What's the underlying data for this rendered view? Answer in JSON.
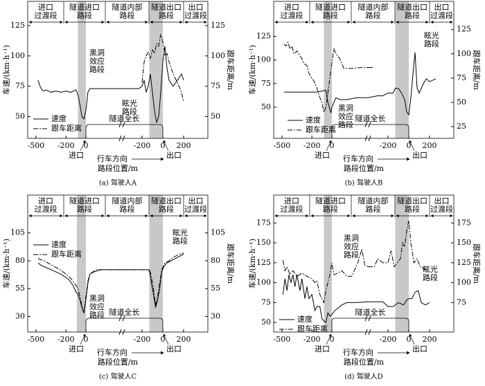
{
  "chart_data": [
    {
      "type": "line",
      "title": "(a) 驾驶人A",
      "ylabel": "车速/(km·h⁻¹)",
      "y2label": "跟车距离/m",
      "xlabel": "路段位置/m",
      "zones": [
        [
          "进口",
          "过渡段"
        ],
        [
          "隧道进口",
          "路段"
        ],
        [
          "隧道内部",
          "路段"
        ],
        [
          "隧道出口",
          "路段"
        ],
        [
          "出口",
          "过渡段"
        ]
      ],
      "entrance_label": "进口",
      "exit_label": "出口",
      "direction_label": "行车方向",
      "tunnel_label": "隧道全长",
      "black_hole_label": [
        "黑洞",
        "效应",
        "路段"
      ],
      "glare_label": [
        "眩光",
        "路段"
      ],
      "ylim": [
        32,
        145
      ],
      "yticks": [
        50,
        75,
        100,
        125
      ],
      "y2lim": [
        32,
        145
      ],
      "y2ticks": [
        50,
        75,
        100,
        125
      ],
      "entrance_axis": {
        "xlim": [
          -583,
          361
        ],
        "xticks": [
          -500,
          -200,
          0
        ],
        "shaded": [
          -80,
          0
        ]
      },
      "exit_axis": {
        "xlim": [
          -393,
          433
        ],
        "xticks": [
          -200,
          0,
          200
        ],
        "shaded": [
          -130,
          0
        ]
      },
      "series": [
        {
          "name": "速度",
          "color": "#000000",
          "style": "solid",
          "entrance": {
            "x": [
              -480,
              -460,
              -440,
              -420,
              -400,
              -350,
              -300,
              -250,
              -200,
              -150,
              -100,
              -80,
              -60,
              -40,
              -20,
              0,
              20,
              40,
              100,
              200,
              361
            ],
            "values": [
              80,
              75,
              72,
              71,
              72,
              70,
              71,
              70,
              71,
              70,
              72,
              68,
              60,
              50,
              48,
              55,
              70,
              73,
              73,
              73,
              73
            ]
          },
          "exit": {
            "x": [
              -393,
              -300,
              -230,
              -200,
              -180,
              -160,
              -140,
              -120,
              -100,
              -80,
              -60,
              -40,
              -20,
              0,
              20,
              40,
              60,
              100,
              140,
              180,
              200
            ],
            "values": [
              73,
              73,
              73,
              75,
              80,
              70,
              75,
              85,
              70,
              55,
              45,
              50,
              70,
              95,
              108,
              90,
              80,
              75,
              80,
              85,
              80
            ]
          }
        },
        {
          "name": "跟车距离",
          "color": "#000000",
          "style": "dashdot",
          "axis": "y2",
          "exit": {
            "x": [
              -200,
              -180,
              -160,
              -140,
              -120,
              -100,
              -80,
              -60,
              -40,
              -20,
              0,
              20,
              40,
              60,
              80,
              100,
              140,
              180,
              200
            ],
            "values": [
              78,
              95,
              100,
              103,
              98,
              105,
              102,
              110,
              108,
              118,
              112,
              100,
              102,
              95,
              90,
              85,
              78,
              70,
              62
            ]
          }
        }
      ]
    },
    {
      "type": "line",
      "title": "(b) 驾驶人B",
      "ylabel": "车速/(km·h⁻¹)",
      "y2label": "跟车距离/m",
      "xlabel": "路段位置/m",
      "zones": [
        [
          "进口",
          "过渡段"
        ],
        [
          "隧道进口",
          "路段"
        ],
        [
          "隧道内部",
          "路段"
        ],
        [
          "隧道出口",
          "路段"
        ],
        [
          "出口",
          "过渡段"
        ]
      ],
      "entrance_label": "进口",
      "exit_label": "出口",
      "direction_label": "行车方向",
      "tunnel_label": "隧道全长",
      "black_hole_label": [
        "黑洞",
        "效应",
        "路段"
      ],
      "glare_label": [
        "眩光",
        "路段"
      ],
      "ylim": [
        17,
        162
      ],
      "yticks": [
        50,
        75,
        100,
        125
      ],
      "y2lim": [
        13,
        154
      ],
      "y2ticks": [
        25,
        50,
        75,
        100,
        125
      ],
      "entrance_axis": {
        "xlim": [
          -583,
          361
        ],
        "xticks": [
          -500,
          -200,
          0
        ],
        "shaded": [
          -80,
          0
        ]
      },
      "exit_axis": {
        "xlim": [
          -393,
          433
        ],
        "xticks": [
          -200,
          0,
          200
        ],
        "shaded": [
          -130,
          0
        ]
      },
      "series": [
        {
          "name": "速度",
          "color": "#000000",
          "style": "solid",
          "entrance": {
            "x": [
              -480,
              -400,
              -300,
              -200,
              -150,
              -100,
              -60,
              -40,
              -20,
              -10,
              0,
              20,
              40,
              80,
              150,
              250,
              361
            ],
            "values": [
              66,
              66,
              66,
              66,
              66,
              67,
              68,
              55,
              48,
              44,
              50,
              55,
              60,
              58,
              58,
              60,
              60
            ]
          },
          "exit": {
            "x": [
              -393,
              -300,
              -250,
              -200,
              -150,
              -130,
              -100,
              -70,
              -40,
              -20,
              0,
              20,
              40,
              60,
              80,
              100,
              140,
              170,
              200,
              260
            ],
            "values": [
              60,
              62,
              62,
              65,
              65,
              70,
              70,
              65,
              58,
              45,
              42,
              60,
              85,
              108,
              70,
              65,
              75,
              80,
              77,
              80
            ]
          }
        },
        {
          "name": "跟车距离",
          "color": "#000000",
          "style": "dashdot",
          "axis": "y2",
          "entrance": {
            "x": [
              -480,
              -460,
              -440,
              -420,
              -400,
              -380,
              -350,
              -300,
              -280,
              -250,
              -230,
              -200,
              -180,
              -150,
              -120,
              -100,
              -80,
              -60,
              -40,
              -20,
              0,
              20,
              40,
              80,
              120,
              150,
              200,
              300,
              361
            ],
            "values": [
              110,
              108,
              112,
              105,
              108,
              100,
              103,
              95,
              90,
              88,
              80,
              75,
              72,
              65,
              55,
              50,
              40,
              45,
              60,
              75,
              90,
              105,
              100,
              95,
              85,
              85,
              85,
              86,
              86
            ]
          },
          "exit": {
            "x": [
              -393,
              -340
            ],
            "values": [
              86,
              86
            ]
          }
        }
      ]
    },
    {
      "type": "line",
      "title": "(c) 驾驶人C",
      "ylabel": "车速/(km·h⁻¹)",
      "y2label": "跟车距离/m",
      "xlabel": "路段位置/m",
      "zones": [
        [
          "进口",
          "过渡段"
        ],
        [
          "隧道进口",
          "路段"
        ],
        [
          "隧道内部",
          "路段"
        ],
        [
          "隧道出口",
          "路段"
        ],
        [
          "出口",
          "过渡段"
        ]
      ],
      "entrance_label": "进口",
      "exit_label": "出口",
      "direction_label": "行车方向",
      "tunnel_label": "隧道全长",
      "black_hole_label": [
        "黑洞",
        "效应",
        "路段"
      ],
      "glare_label": [
        "眩光",
        "路段"
      ],
      "ylim": [
        16,
        139
      ],
      "yticks": [
        30,
        55,
        80,
        105
      ],
      "y2lim": [
        16,
        139
      ],
      "y2ticks": [
        30,
        55,
        80,
        105
      ],
      "entrance_axis": {
        "xlim": [
          -583,
          361
        ],
        "xticks": [
          -500,
          -200,
          0
        ],
        "shaded": [
          -90,
          0
        ]
      },
      "exit_axis": {
        "xlim": [
          -393,
          433
        ],
        "xticks": [
          -200,
          0,
          200
        ],
        "shaded": [
          -130,
          0
        ]
      },
      "series": [
        {
          "name": "速度",
          "color": "#000000",
          "style": "solid",
          "entrance": {
            "x": [
              -480,
              -450,
              -400,
              -350,
              -300,
              -250,
              -200,
              -170,
              -130,
              -100,
              -80,
              -60,
              -40,
              -20,
              0,
              20,
              40,
              80,
              150,
              361
            ],
            "values": [
              78,
              76,
              74,
              72,
              70,
              68,
              65,
              63,
              58,
              52,
              50,
              45,
              38,
              33,
              45,
              60,
              68,
              70,
              72,
              72
            ]
          },
          "exit": {
            "x": [
              -393,
              -150,
              -130,
              -110,
              -90,
              -70,
              -50,
              -30,
              -10,
              10,
              40,
              80,
              120,
              160,
              200
            ],
            "values": [
              72,
              72,
              72,
              60,
              50,
              38,
              45,
              55,
              70,
              75,
              78,
              80,
              82,
              84,
              86
            ]
          }
        },
        {
          "name": "跟车距离",
          "color": "#000000",
          "style": "dashdot",
          "axis": "y2",
          "entrance": {
            "x": [
              -480,
              -420,
              -380,
              -320,
              -260,
              -200,
              -150,
              -100,
              -80,
              -60,
              -40,
              -20,
              0,
              20,
              40,
              100,
              361
            ],
            "values": [
              82,
              80,
              78,
              75,
              72,
              68,
              64,
              58,
              55,
              48,
              40,
              33,
              48,
              62,
              68,
              72,
              72
            ]
          },
          "exit": {
            "x": [
              -393,
              -150,
              -120,
              -90,
              -70,
              -50,
              -30,
              -10,
              20,
              60,
              100,
              140,
              200
            ],
            "values": [
              72,
              72,
              70,
              55,
              40,
              48,
              60,
              72,
              78,
              80,
              83,
              85,
              87
            ]
          }
        }
      ]
    },
    {
      "type": "line",
      "title": "(d) 驾驶人D",
      "ylabel": "车速/(km·h⁻¹)",
      "y2label": "跟车距离/m",
      "xlabel": "路段位置/m",
      "zones": [
        [
          "进口",
          "过渡段"
        ],
        [
          "隧道进口",
          "路段"
        ],
        [
          "隧道内部",
          "路段"
        ],
        [
          "隧道出口",
          "路段"
        ],
        [
          "出口",
          "过渡段"
        ]
      ],
      "entrance_label": "进口",
      "exit_label": "出口",
      "direction_label": "行车方向",
      "tunnel_label": "隧道全长",
      "black_hole_label": [
        "黑洞",
        "效应",
        "路段"
      ],
      "glare_label": [
        "眩光",
        "路段"
      ],
      "ylim": [
        38,
        210
      ],
      "yticks": [
        50,
        75,
        100,
        125,
        150,
        175
      ],
      "y2lim": [
        38,
        210
      ],
      "y2ticks": [
        75,
        100,
        125,
        150,
        175
      ],
      "entrance_axis": {
        "xlim": [
          -583,
          361
        ],
        "xticks": [
          -500,
          -200,
          0
        ],
        "shaded": [
          -80,
          0
        ]
      },
      "exit_axis": {
        "xlim": [
          -393,
          433
        ],
        "xticks": [
          -200,
          0,
          200
        ],
        "shaded": [
          -130,
          0
        ]
      },
      "series": [
        {
          "name": "速度",
          "color": "#000000",
          "style": "solid",
          "entrance": {
            "x": [
              -490,
              -470,
              -450,
              -430,
              -410,
              -390,
              -370,
              -350,
              -320,
              -300,
              -270,
              -250,
              -230,
              -200,
              -170,
              -150,
              -120,
              -100,
              -80,
              -60,
              -40,
              -20,
              0,
              30,
              60,
              100,
              150,
              250,
              361
            ],
            "values": [
              85,
              105,
              90,
              110,
              100,
              110,
              95,
              110,
              90,
              105,
              80,
              95,
              80,
              85,
              65,
              70,
              70,
              55,
              52,
              50,
              62,
              58,
              60,
              65,
              68,
              72,
              75,
              75,
              76
            ]
          },
          "exit": {
            "x": [
              -393,
              -250,
              -200,
              -150,
              -100,
              -50,
              -20,
              0,
              30,
              60,
              90,
              120,
              160,
              200
            ],
            "values": [
              76,
              76,
              70,
              70,
              75,
              72,
              78,
              80,
              80,
              88,
              90,
              75,
              72,
              75
            ]
          }
        },
        {
          "name": "跟车距离",
          "color": "#000000",
          "style": "dashdot",
          "axis": "y2",
          "entrance": {
            "x": [
              -490,
              -470,
              -450,
              -420,
              -390,
              -350,
              -300,
              -250,
              -200,
              -170,
              -150,
              -120,
              -100,
              -80,
              -60,
              -40,
              -20,
              0,
              20,
              60,
              100,
              150,
              200,
              260,
              300,
              330,
              361
            ],
            "values": [
              128,
              115,
              120,
              110,
              115,
              108,
              112,
              108,
              105,
              100,
              102,
              85,
              80,
              75,
              90,
              100,
              110,
              125,
              110,
              112,
              115,
              108,
              108,
              125,
              142,
              122,
              120
            ]
          },
          "exit": {
            "x": [
              -393,
              -330,
              -300,
              -250,
              -200,
              -170,
              -140,
              -110,
              -80,
              -60,
              -40,
              -20,
              0,
              20,
              50,
              80,
              110,
              140,
              180
            ],
            "values": [
              120,
              120,
              130,
              125,
              125,
              140,
              120,
              125,
              130,
              150,
              145,
              165,
              178,
              150,
              125,
              130,
              120,
              118,
              115
            ]
          }
        }
      ]
    }
  ]
}
